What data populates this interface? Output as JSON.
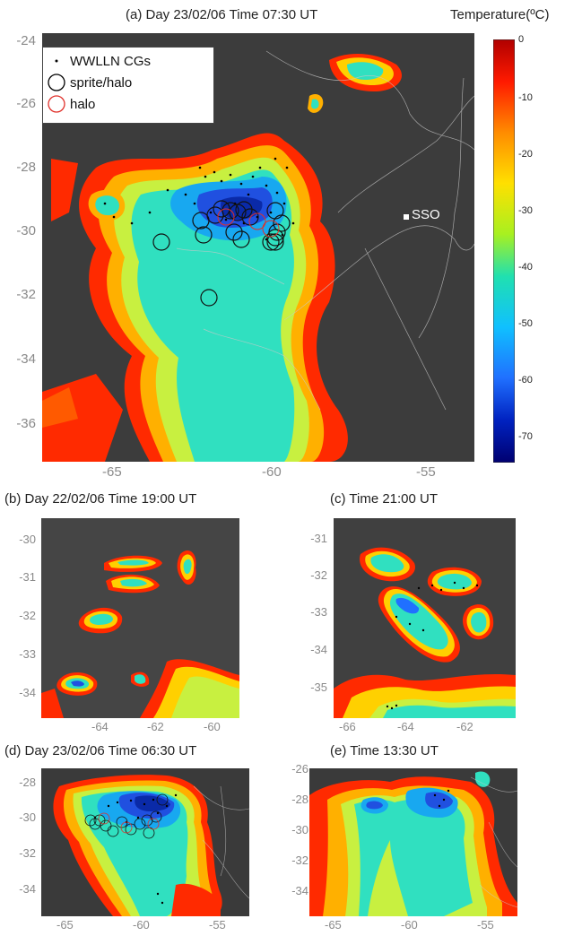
{
  "panel_a": {
    "title": "(a) Day 23/02/06  Time 07:30 UT",
    "x_ticks": [
      "-65",
      "-60",
      "-55"
    ],
    "y_ticks": [
      "-24",
      "-26",
      "-28",
      "-30",
      "-32",
      "-34",
      "-36"
    ],
    "legend": {
      "items": [
        {
          "label": "WWLLN CGs",
          "symbol": "dot",
          "color": "#000000"
        },
        {
          "label": "sprite/halo",
          "symbol": "circle",
          "color": "#000000"
        },
        {
          "label": "halo",
          "symbol": "circle",
          "color": "#e0302a"
        }
      ]
    },
    "station_label": "SSO"
  },
  "colorbar": {
    "title": "Temperature(ºC)",
    "ticks": [
      "0",
      "-10",
      "-20",
      "-30",
      "-40",
      "-50",
      "-60",
      "-70"
    ]
  },
  "panel_b": {
    "title": "(b) Day 22/02/06  Time 19:00 UT",
    "x_ticks": [
      "-64",
      "-62",
      "-60"
    ],
    "y_ticks": [
      "-30",
      "-31",
      "-32",
      "-33",
      "-34"
    ]
  },
  "panel_c": {
    "title": "(c) Time 21:00 UT",
    "x_ticks": [
      "-66",
      "-64",
      "-62"
    ],
    "y_ticks": [
      "-31",
      "-32",
      "-33",
      "-34",
      "-35"
    ]
  },
  "panel_d": {
    "title": "(d) Day 23/02/06  Time 06:30 UT",
    "x_ticks": [
      "-65",
      "-60",
      "-55"
    ],
    "y_ticks": [
      "-28",
      "-30",
      "-32",
      "-34"
    ]
  },
  "panel_e": {
    "title": "(e) Time 13:30 UT",
    "x_ticks": [
      "-65",
      "-60",
      "-55"
    ],
    "y_ticks": [
      "-26",
      "-28",
      "-30",
      "-32",
      "-34"
    ]
  }
}
